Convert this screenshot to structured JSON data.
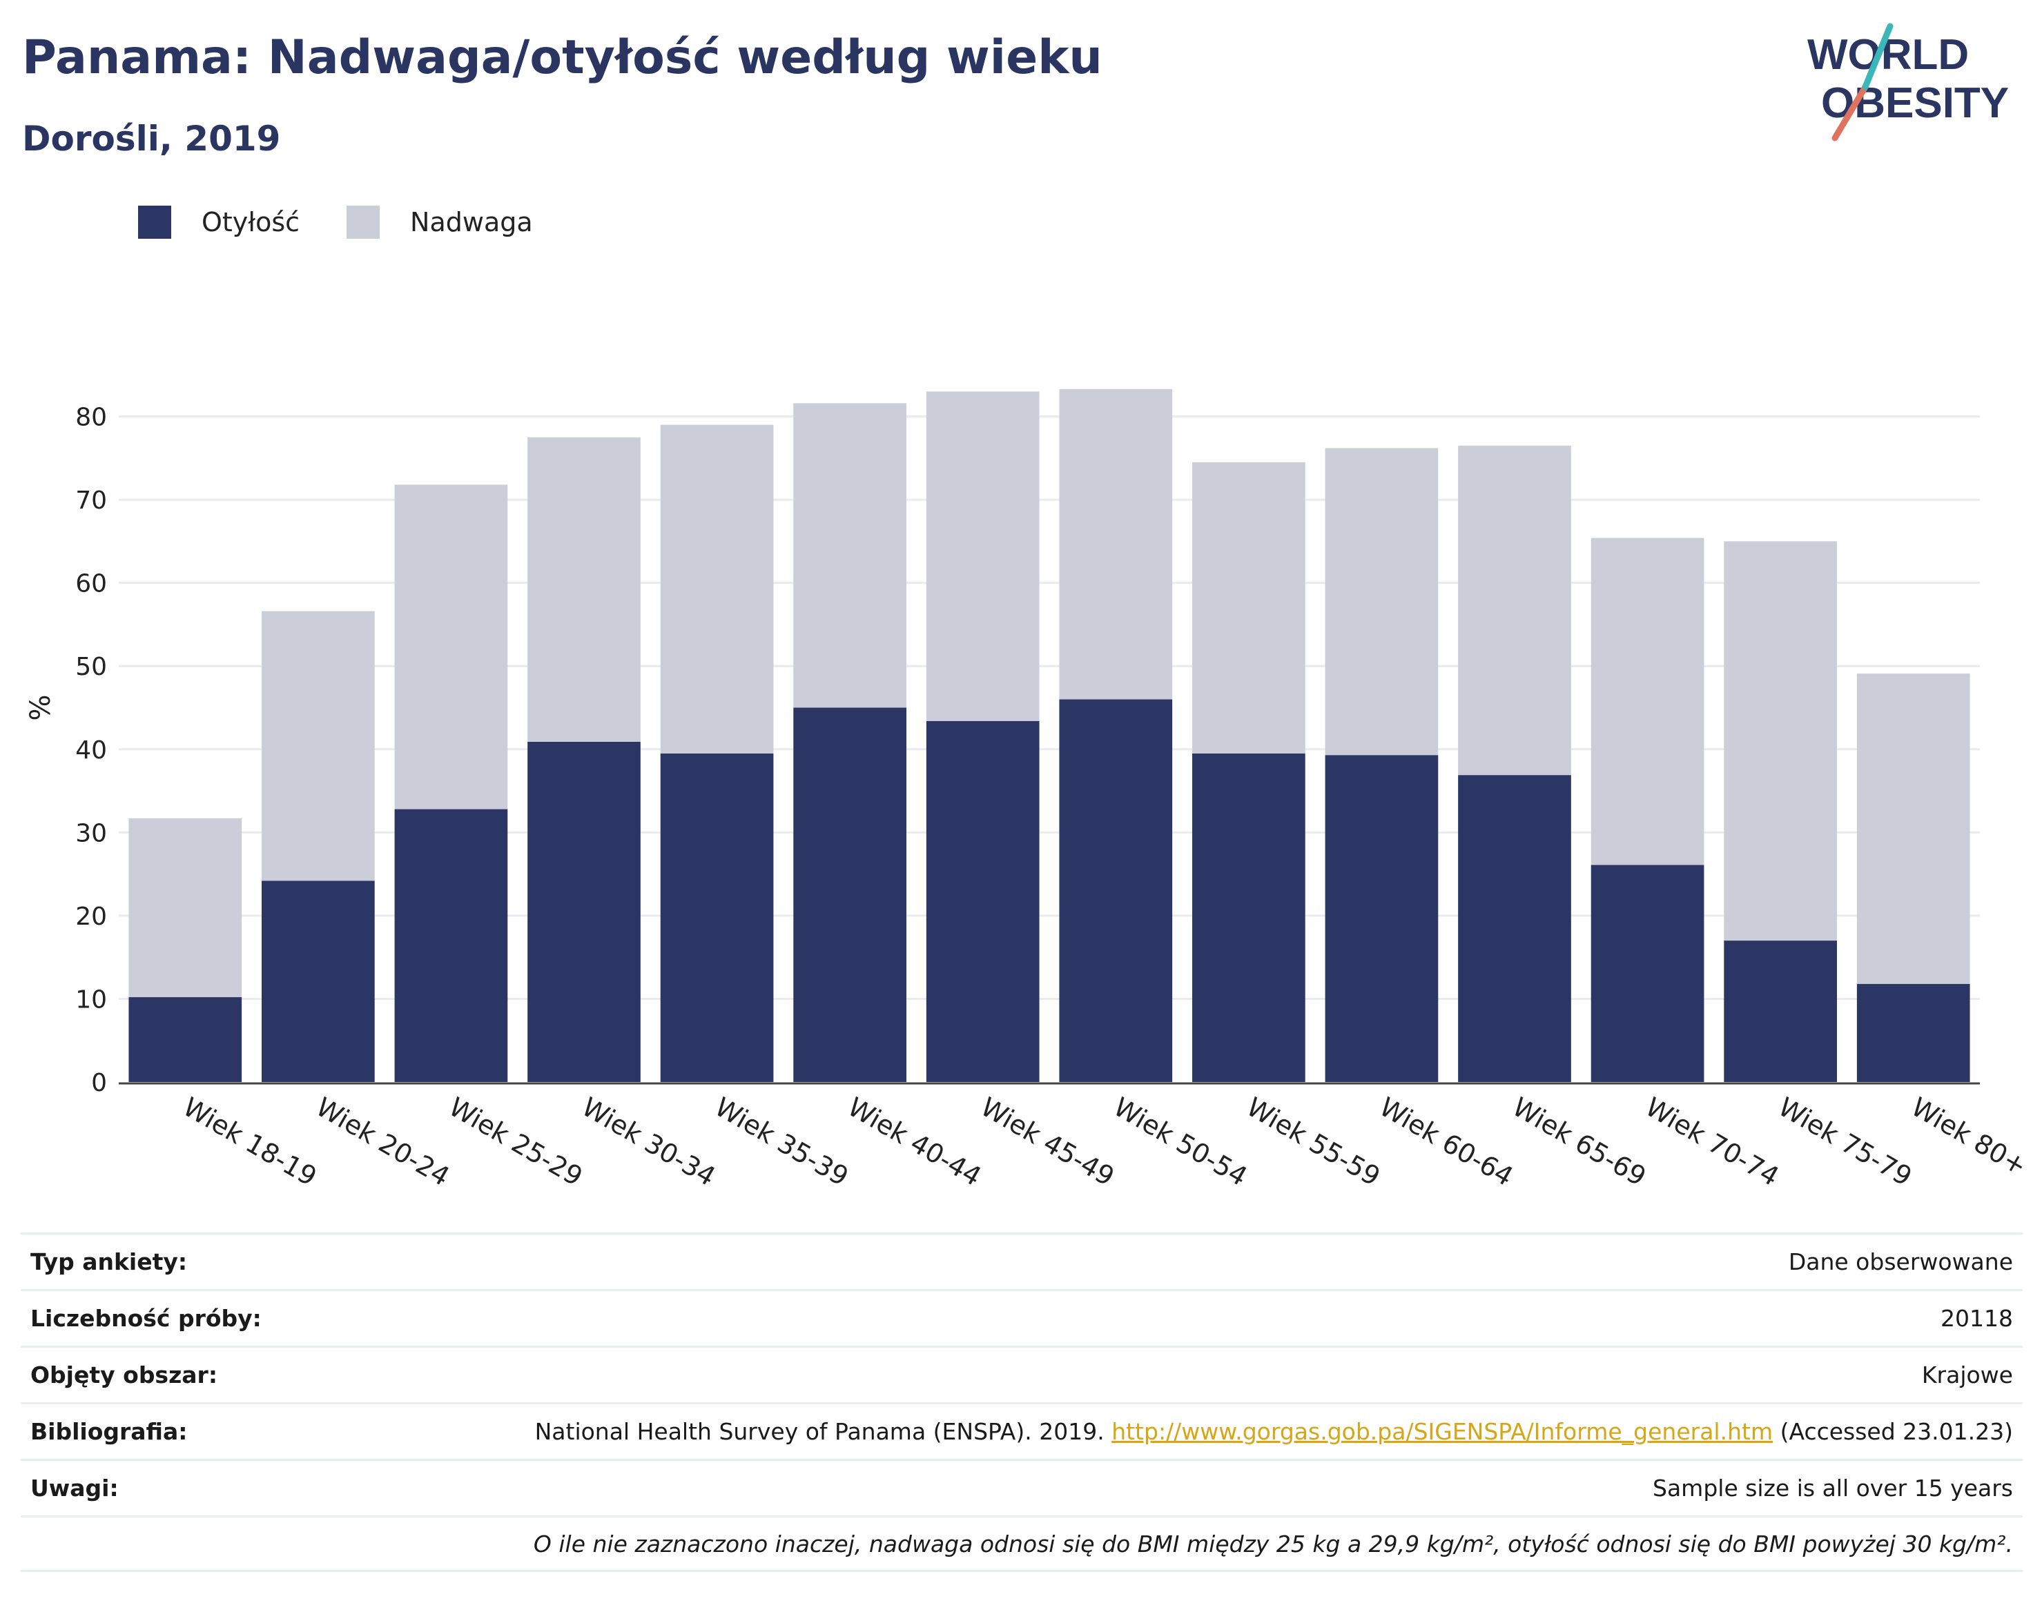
{
  "header": {
    "title": "Panama: Nadwaga/otyłość według wieku",
    "subtitle": "Dorośli, 2019"
  },
  "logo": {
    "line1": "WORLD",
    "line2": "OBESITY"
  },
  "colors": {
    "obesity": "#2b3664",
    "overweight": "#cbcdd9",
    "text": "#2a3561",
    "grid": "#e9ebee"
  },
  "chart_data": {
    "type": "bar",
    "stacked": true,
    "categories": [
      "Wiek 18-19",
      "Wiek 20-24",
      "Wiek 25-29",
      "Wiek 30-34",
      "Wiek 35-39",
      "Wiek 40-44",
      "Wiek 45-49",
      "Wiek 50-54",
      "Wiek 55-59",
      "Wiek 60-64",
      "Wiek 65-69",
      "Wiek 70-74",
      "Wiek 75-79",
      "Wiek 80+"
    ],
    "series": [
      {
        "name": "Otyłość",
        "values": [
          10.2,
          24.2,
          32.8,
          40.9,
          39.5,
          45.0,
          43.4,
          46.0,
          39.5,
          39.3,
          36.9,
          26.1,
          17.0,
          11.8
        ]
      },
      {
        "name": "Nadwaga",
        "values": [
          21.5,
          32.4,
          39.0,
          36.6,
          39.5,
          36.6,
          39.6,
          37.3,
          35.0,
          36.9,
          39.6,
          39.3,
          48.0,
          37.3
        ]
      }
    ],
    "ylabel": "%",
    "ylim": [
      0,
      90
    ],
    "yticks": [
      0,
      10,
      20,
      30,
      40,
      50,
      60,
      70,
      80
    ],
    "grid": true,
    "legend": "top-left"
  },
  "info_table": {
    "rows": [
      {
        "key": "Typ ankiety:",
        "value": "Dane obserwowane"
      },
      {
        "key": "Liczebność próby:",
        "value": "20118"
      },
      {
        "key": "Objęty obszar:",
        "value": "Krajowe"
      },
      {
        "key": "Bibliografia:",
        "value_pre": "National Health Survey of Panama (ENSPA). 2019. ",
        "link": "http://www.gorgas.gob.pa/SIGENSPA/Informe_general.htm",
        "value_post": " (Accessed 23.01.23)"
      },
      {
        "key": "Uwagi:",
        "value": "Sample size is all over 15 years"
      }
    ],
    "note": "O ile nie zaznaczono inaczej, nadwaga odnosi się do BMI między 25 kg a 29,9 kg/m², otyłość odnosi się do BMI powyżej 30 kg/m²."
  }
}
